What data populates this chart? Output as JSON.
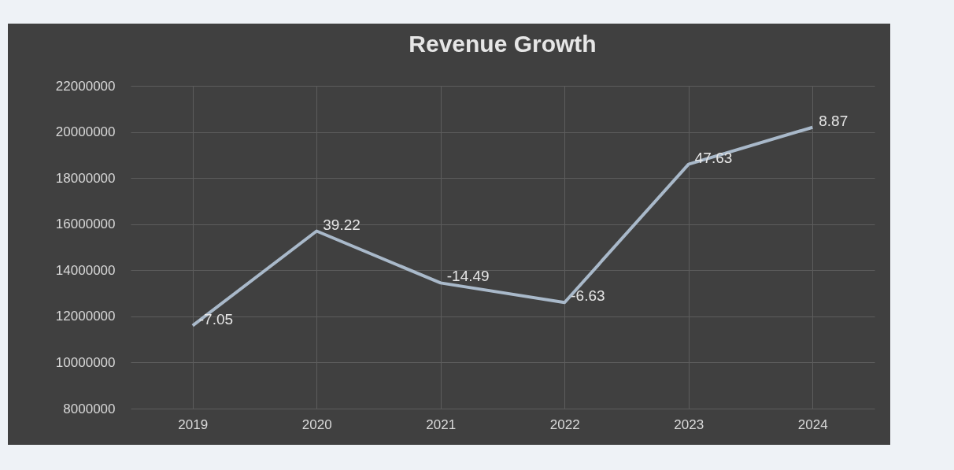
{
  "chart_data": {
    "type": "line",
    "title": "Revenue Growth",
    "categories": [
      "2019",
      "2020",
      "2021",
      "2022",
      "2023",
      "2024"
    ],
    "series": [
      {
        "color": "#a9b9ca",
        "values": [
          11600000,
          15700000,
          13450000,
          12600000,
          18600000,
          20200000
        ]
      }
    ],
    "annotations": [
      {
        "text": "-7.05",
        "x": "2019",
        "y": 11600000
      },
      {
        "text": "39.22",
        "x": "2020",
        "y": 15700000
      },
      {
        "text": "-14.49",
        "x": "2021",
        "y": 13450000
      },
      {
        "text": "-6.63",
        "x": "2022",
        "y": 12600000
      },
      {
        "text": "47.63",
        "x": "2023",
        "y": 18600000
      },
      {
        "text": "8.87",
        "x": "2024",
        "y": 20200000
      }
    ],
    "ylim": [
      8000000,
      22000000
    ],
    "yticks": [
      8000000,
      10000000,
      12000000,
      14000000,
      16000000,
      18000000,
      20000000,
      22000000
    ],
    "grid": true
  }
}
